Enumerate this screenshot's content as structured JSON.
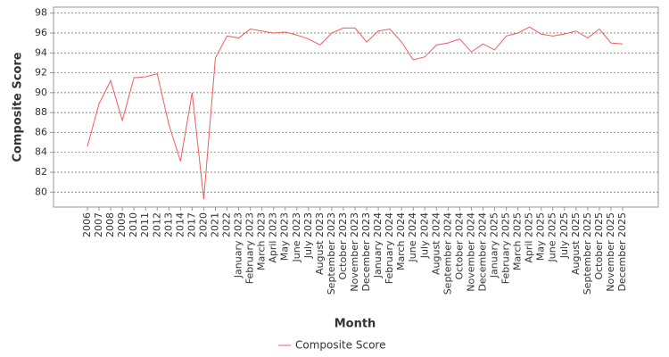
{
  "chart_data": {
    "type": "line",
    "x_label": "Month",
    "y_label": "Composite Score",
    "categories": [
      "2006",
      "2007",
      "2008",
      "2009",
      "2010",
      "2011",
      "2012",
      "2013",
      "2014",
      "2017",
      "2020",
      "2021",
      "2022",
      "January 2023",
      "February 2023",
      "March 2023",
      "April 2023",
      "May 2023",
      "June 2023",
      "July 2023",
      "August 2023",
      "September 2023",
      "October 2023",
      "November 2023",
      "December 2023",
      "January 2024",
      "February 2024",
      "March 2024",
      "June 2024",
      "July 2024",
      "August 2024",
      "September 2024",
      "October 2024",
      "November 2024",
      "December 2024",
      "January 2025",
      "February 2025",
      "March 2025",
      "April 2025",
      "May 2025",
      "June 2025",
      "July 2025",
      "August 2025",
      "September 2025",
      "October 2025",
      "November 2025",
      "December 2025"
    ],
    "series": [
      {
        "name": "Composite Score",
        "color": "#f25c5c",
        "values": [
          84.6,
          88.9,
          91.2,
          87.2,
          91.5,
          91.6,
          91.9,
          86.8,
          83.1,
          90.0,
          79.3,
          93.5,
          95.7,
          95.5,
          96.4,
          96.2,
          96.0,
          96.1,
          95.8,
          95.4,
          94.8,
          96.0,
          96.5,
          96.5,
          95.1,
          96.2,
          96.4,
          95.1,
          93.3,
          93.6,
          94.8,
          95.0,
          95.4,
          94.1,
          94.9,
          94.3,
          95.7,
          96.0,
          96.6,
          95.9,
          95.7,
          95.9,
          96.2,
          95.5,
          96.4,
          95.0,
          94.9
        ]
      }
    ],
    "ylim": [
      78.5,
      98.6
    ],
    "yticks": [
      80,
      82,
      84,
      86,
      88,
      90,
      92,
      94,
      96,
      98
    ],
    "grid": true,
    "legend": "bottom"
  }
}
